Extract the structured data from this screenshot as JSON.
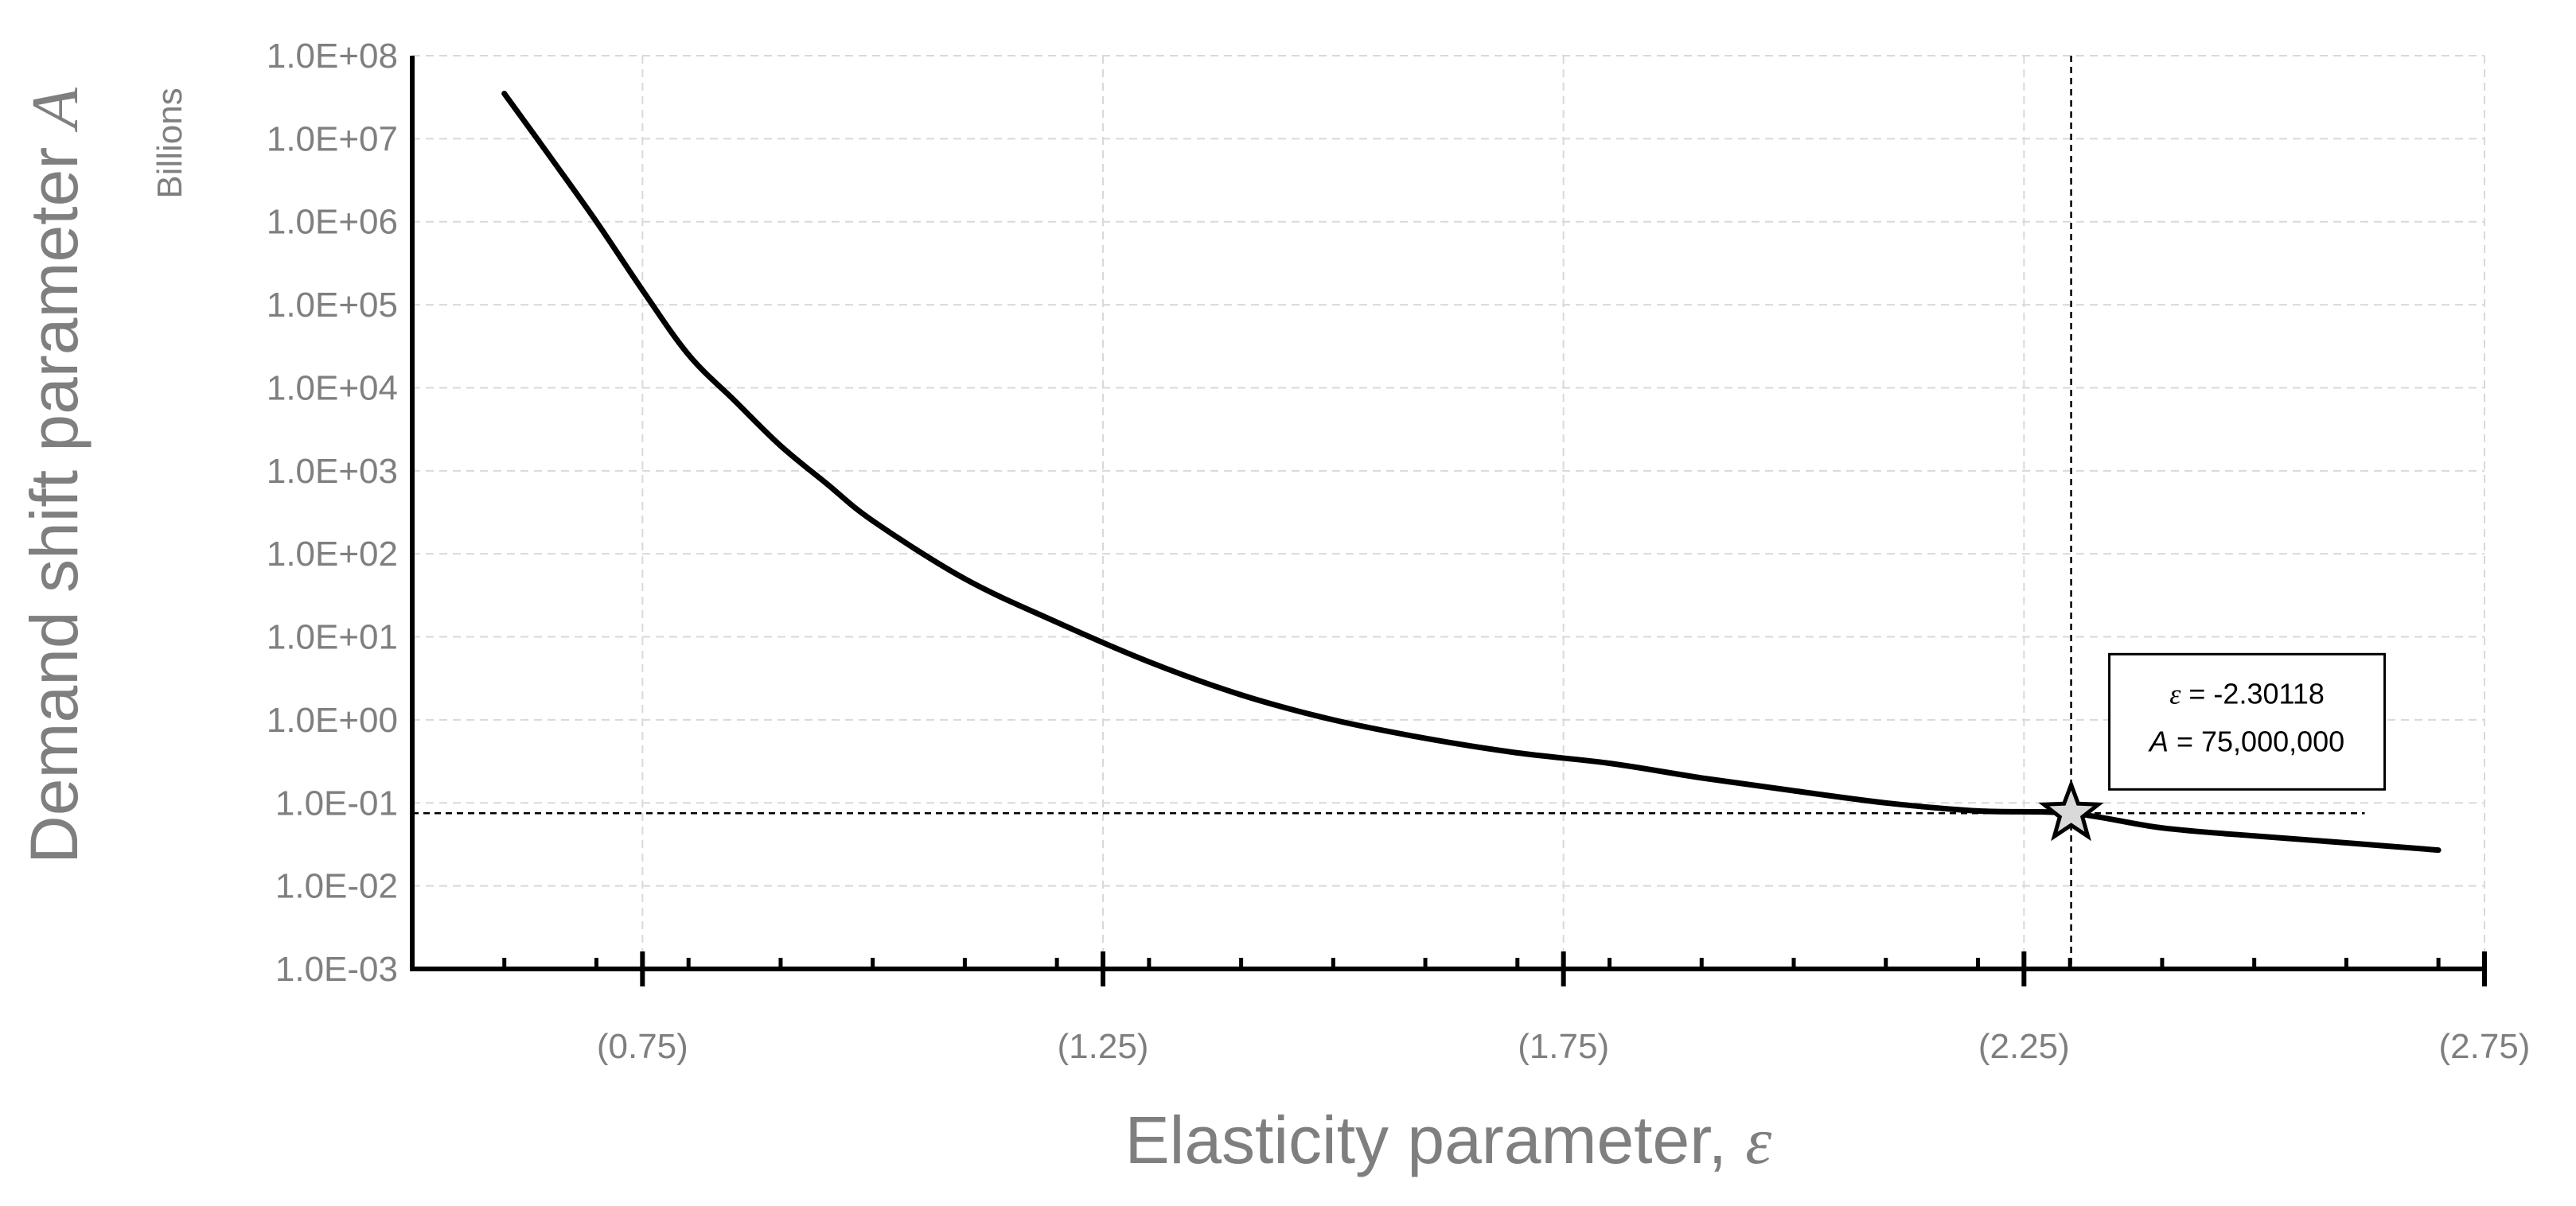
{
  "chart_data": {
    "type": "line",
    "title": "",
    "xlabel": "Elasticity parameter, ",
    "xlabel_symbol": "ε",
    "ylabel": "Demand shift parameter ",
    "ylabel_symbol": "A",
    "y_unit_label": "Billions",
    "y_scale": "log",
    "ylim": [
      0.001,
      100000000
    ],
    "xlim": [
      -0.5,
      -2.75
    ],
    "x_tick_values": [
      -0.75,
      -1.25,
      -1.75,
      -2.25,
      -2.75
    ],
    "x_tick_labels": [
      "(0.75)",
      "(1.25)",
      "(1.75)",
      "(2.25)",
      "(2.75)"
    ],
    "y_tick_values": [
      100000000,
      10000000,
      1000000,
      100000,
      10000,
      1000,
      100,
      10,
      1,
      0.1,
      0.01,
      0.001
    ],
    "y_tick_labels": [
      "1.0E+08",
      "1.0E+07",
      "1.0E+06",
      "1.0E+05",
      "1.0E+04",
      "1.0E+03",
      "1.0E+02",
      "1.0E+01",
      "1.0E+00",
      "1.0E-01",
      "1.0E-02",
      "1.0E-03"
    ],
    "grid": true,
    "series": [
      {
        "x": [
          -0.6,
          -0.65,
          -0.7,
          -0.75,
          -0.8,
          -0.85,
          -0.9,
          -0.95,
          -1.0,
          -1.1,
          -1.2,
          -1.3,
          -1.4,
          -1.5,
          -1.6,
          -1.7,
          -1.8,
          -1.9,
          -2.0,
          -2.1,
          -2.2,
          -2.30118,
          -2.4,
          -2.5,
          -2.6,
          -2.7
        ],
        "y": [
          35000000,
          6000000,
          1000000,
          150000,
          25000,
          7000,
          2000,
          700,
          250,
          50,
          15,
          5,
          2,
          1,
          0.6,
          0.4,
          0.3,
          0.2,
          0.14,
          0.1,
          0.08,
          0.075,
          0.05,
          0.04,
          0.033,
          0.027
        ],
        "color": "#000000"
      }
    ],
    "annotation": {
      "x": -2.30118,
      "y": 0.075,
      "line1_symbol": "ε",
      "line1_text": " = -2.30118",
      "line2_symbol": "A",
      "line2_text": " = 75,000,000",
      "marker": "star"
    }
  }
}
